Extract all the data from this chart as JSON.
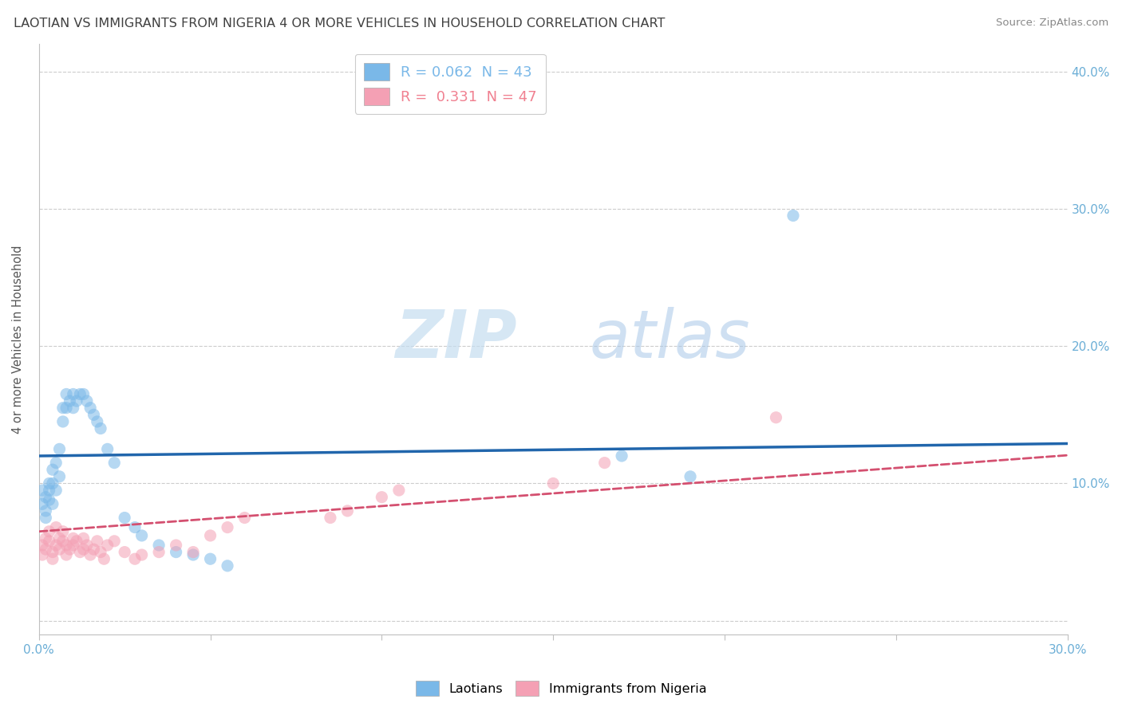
{
  "title": "LAOTIAN VS IMMIGRANTS FROM NIGERIA 4 OR MORE VEHICLES IN HOUSEHOLD CORRELATION CHART",
  "source": "Source: ZipAtlas.com",
  "ylabel": "4 or more Vehicles in Household",
  "legend_entries": [
    {
      "label": "R = 0.062  N = 43",
      "color": "#7ab8e8"
    },
    {
      "label": "R =  0.331  N = 47",
      "color": "#f08090"
    }
  ],
  "watermark_zip": "ZIP",
  "watermark_atlas": "atlas",
  "xlim": [
    0.0,
    0.3
  ],
  "ylim": [
    -0.01,
    0.42
  ],
  "ytick_vals": [
    0.0,
    0.1,
    0.2,
    0.3,
    0.4
  ],
  "ytick_labels": [
    "",
    "10.0%",
    "20.0%",
    "30.0%",
    "40.0%"
  ],
  "ytick_labels_right": [
    "",
    "10.0%",
    "20.0%",
    "30.0%",
    "40.0%"
  ],
  "laotian_x": [
    0.001,
    0.001,
    0.002,
    0.002,
    0.002,
    0.003,
    0.003,
    0.003,
    0.004,
    0.004,
    0.004,
    0.005,
    0.005,
    0.006,
    0.006,
    0.007,
    0.007,
    0.008,
    0.008,
    0.009,
    0.01,
    0.01,
    0.011,
    0.012,
    0.013,
    0.014,
    0.015,
    0.016,
    0.017,
    0.018,
    0.02,
    0.022,
    0.025,
    0.028,
    0.03,
    0.035,
    0.04,
    0.045,
    0.05,
    0.055,
    0.17,
    0.19,
    0.22
  ],
  "laotian_y": [
    0.095,
    0.085,
    0.09,
    0.08,
    0.075,
    0.1,
    0.095,
    0.088,
    0.11,
    0.1,
    0.085,
    0.115,
    0.095,
    0.125,
    0.105,
    0.155,
    0.145,
    0.165,
    0.155,
    0.16,
    0.165,
    0.155,
    0.16,
    0.165,
    0.165,
    0.16,
    0.155,
    0.15,
    0.145,
    0.14,
    0.125,
    0.115,
    0.075,
    0.068,
    0.062,
    0.055,
    0.05,
    0.048,
    0.045,
    0.04,
    0.12,
    0.105,
    0.295
  ],
  "nigeria_x": [
    0.001,
    0.001,
    0.002,
    0.002,
    0.003,
    0.003,
    0.004,
    0.004,
    0.005,
    0.005,
    0.006,
    0.006,
    0.007,
    0.007,
    0.008,
    0.008,
    0.009,
    0.01,
    0.01,
    0.011,
    0.012,
    0.013,
    0.013,
    0.014,
    0.015,
    0.016,
    0.017,
    0.018,
    0.019,
    0.02,
    0.022,
    0.025,
    0.028,
    0.03,
    0.035,
    0.04,
    0.045,
    0.05,
    0.055,
    0.06,
    0.085,
    0.09,
    0.1,
    0.105,
    0.15,
    0.165,
    0.215
  ],
  "nigeria_y": [
    0.055,
    0.048,
    0.06,
    0.052,
    0.065,
    0.058,
    0.05,
    0.045,
    0.068,
    0.055,
    0.06,
    0.052,
    0.058,
    0.065,
    0.055,
    0.048,
    0.052,
    0.06,
    0.055,
    0.058,
    0.05,
    0.052,
    0.06,
    0.055,
    0.048,
    0.052,
    0.058,
    0.05,
    0.045,
    0.055,
    0.058,
    0.05,
    0.045,
    0.048,
    0.05,
    0.055,
    0.05,
    0.062,
    0.068,
    0.075,
    0.075,
    0.08,
    0.09,
    0.095,
    0.1,
    0.115,
    0.148
  ],
  "blue_scatter_color": "#7ab8e8",
  "pink_scatter_color": "#f4a0b4",
  "blue_line_color": "#2166ac",
  "pink_line_color": "#d45070",
  "grid_color": "#cccccc",
  "background_color": "#ffffff",
  "title_color": "#404040",
  "tick_color": "#6baed6",
  "source_color": "#888888"
}
